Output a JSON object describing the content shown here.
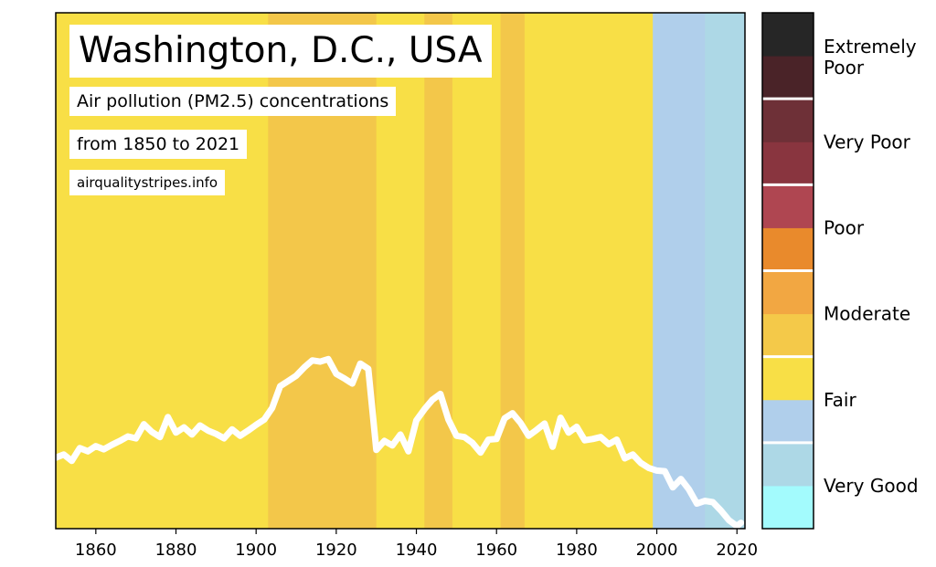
{
  "chart_data": {
    "type": "line",
    "title": "Washington, D.C., USA",
    "subtitle_1": "Air pollution (PM2.5) concentrations",
    "subtitle_2": "from 1850 to 2021",
    "source": "airqualitystripes.info",
    "xlim": [
      1850,
      2022
    ],
    "ylim": [
      0,
      80
    ],
    "x_ticks": [
      1860,
      1880,
      1900,
      1920,
      1940,
      1960,
      1980,
      2000,
      2020
    ],
    "stripe_categories": [
      {
        "range": [
          1850,
          1902
        ],
        "category": "Moderate"
      },
      {
        "range": [
          1903,
          1929
        ],
        "category": "Moderate-high"
      },
      {
        "range": [
          1930,
          1941
        ],
        "category": "Moderate"
      },
      {
        "range": [
          1942,
          1948
        ],
        "category": "Moderate-high"
      },
      {
        "range": [
          1949,
          1960
        ],
        "category": "Moderate"
      },
      {
        "range": [
          1961,
          1966
        ],
        "category": "Moderate-high"
      },
      {
        "range": [
          1967,
          1998
        ],
        "category": "Moderate"
      },
      {
        "range": [
          1999,
          2011
        ],
        "category": "Fair"
      },
      {
        "range": [
          2012,
          2021
        ],
        "category": "Very Good"
      }
    ],
    "series": [
      {
        "name": "PM2.5 concentration",
        "x": [
          1850,
          1852,
          1854,
          1856,
          1858,
          1860,
          1862,
          1864,
          1866,
          1868,
          1870,
          1872,
          1874,
          1876,
          1878,
          1880,
          1882,
          1884,
          1886,
          1888,
          1890,
          1892,
          1894,
          1896,
          1898,
          1900,
          1902,
          1904,
          1906,
          1908,
          1910,
          1912,
          1914,
          1916,
          1918,
          1920,
          1922,
          1924,
          1926,
          1928,
          1930,
          1932,
          1934,
          1936,
          1938,
          1940,
          1942,
          1944,
          1946,
          1948,
          1950,
          1952,
          1954,
          1956,
          1958,
          1960,
          1962,
          1964,
          1966,
          1968,
          1970,
          1972,
          1974,
          1976,
          1978,
          1980,
          1982,
          1984,
          1986,
          1988,
          1990,
          1992,
          1994,
          1996,
          1998,
          2000,
          2002,
          2004,
          2006,
          2008,
          2010,
          2012,
          2014,
          2016,
          2018,
          2020,
          2021
        ],
        "values": [
          11.0,
          11.5,
          10.5,
          12.5,
          12.0,
          12.8,
          12.3,
          13.0,
          13.6,
          14.3,
          14.0,
          16.2,
          15.0,
          14.2,
          17.3,
          14.9,
          15.7,
          14.6,
          16.0,
          15.2,
          14.7,
          14.0,
          15.4,
          14.4,
          15.2,
          16.1,
          16.9,
          18.7,
          22.1,
          22.9,
          23.7,
          25.0,
          26.1,
          25.9,
          26.3,
          24.0,
          23.3,
          22.5,
          25.6,
          24.8,
          12.2,
          13.6,
          12.9,
          14.6,
          12.0,
          16.8,
          18.5,
          20.0,
          20.9,
          16.9,
          14.4,
          14.2,
          13.3,
          11.8,
          13.8,
          13.9,
          17.1,
          17.9,
          16.4,
          14.4,
          15.3,
          16.3,
          12.7,
          17.2,
          14.9,
          15.8,
          13.7,
          13.9,
          14.2,
          13.1,
          13.8,
          10.9,
          11.5,
          10.2,
          9.4,
          9.0,
          8.9,
          6.4,
          7.7,
          6.1,
          3.9,
          4.3,
          4.1,
          2.8,
          1.3,
          0.4,
          0.9
        ]
      }
    ],
    "colorbar": {
      "segments": [
        "#A3FBFD",
        "#ADD8E6",
        "#B0CFEB",
        "#F8DF46",
        "#F4C949",
        "#F2A742",
        "#E98A2C",
        "#AF4651",
        "#89353F",
        "#6E3037",
        "#4A2328",
        "#262626"
      ],
      "labels": [
        {
          "text": "Very Good",
          "line2": ""
        },
        {
          "text": "Fair",
          "line2": ""
        },
        {
          "text": "Moderate",
          "line2": ""
        },
        {
          "text": "Poor",
          "line2": ""
        },
        {
          "text": "Very Poor",
          "line2": ""
        },
        {
          "text": "Extremely",
          "line2": "Poor"
        }
      ]
    },
    "colors": {
      "Moderate": "#F8DF46",
      "Moderate-high": "#F3C74A",
      "Fair": "#B0CFEB",
      "Very Good": "#ADD8E6",
      "line": "#FFFFFF"
    }
  }
}
